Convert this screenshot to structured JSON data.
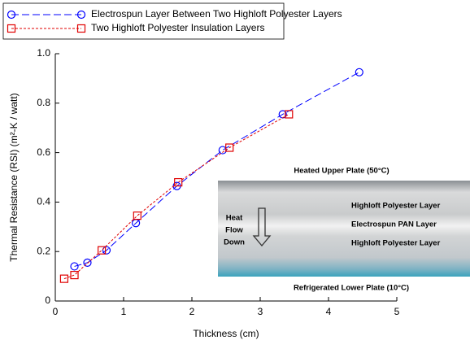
{
  "chart_data": {
    "type": "line",
    "xlabel": "Thickness (cm)",
    "ylabel": "Thermal Resistance (RSI)  (m²-K / watt)",
    "series": [
      {
        "name": "Electrospun Layer Between Two Highloft Polyester Layers",
        "color": "#0000ff",
        "marker": "circle",
        "dash": "long",
        "x": [
          0.28,
          0.47,
          0.75,
          1.18,
          1.78,
          2.45,
          3.33,
          4.45
        ],
        "values": [
          0.14,
          0.155,
          0.205,
          0.315,
          0.465,
          0.61,
          0.755,
          0.925
        ]
      },
      {
        "name": "Two Highloft Polyester Insulation Layers",
        "color": "#e00000",
        "marker": "square",
        "dash": "short",
        "x": [
          0.13,
          0.28,
          0.68,
          1.2,
          1.8,
          2.55,
          3.42
        ],
        "values": [
          0.09,
          0.105,
          0.205,
          0.345,
          0.48,
          0.62,
          0.755
        ]
      }
    ],
    "xlim": [
      0,
      5
    ],
    "xticks": [
      0,
      1,
      2,
      3,
      4,
      5
    ],
    "ylim": [
      0,
      1
    ],
    "yticks": [
      0,
      0.2,
      0.4,
      0.6,
      0.8,
      {
        "value": 1,
        "label": "1.0"
      }
    ],
    "legend": "upper-left",
    "inset": {
      "top": "Heated Upper Plate (50°C)",
      "layers": [
        "Highloft Polyester Layer",
        "Electrospun PAN Layer",
        "Highloft Polyester Layer"
      ],
      "arrow": [
        "Heat",
        "Flow",
        "Down"
      ],
      "bottom": "Refrigerated Lower Plate (10°C)"
    }
  }
}
